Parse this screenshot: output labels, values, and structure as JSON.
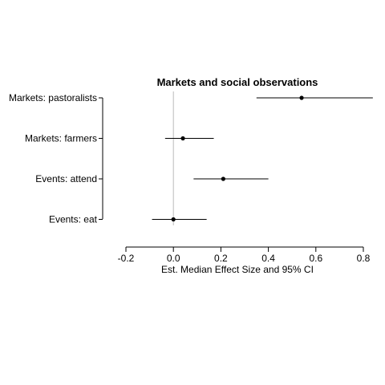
{
  "chart_data": {
    "type": "scatter",
    "title": "Markets and social observations",
    "xlabel": "Est. Median Effect Size and 95% CI",
    "ylabel": "",
    "xlim": [
      -0.2,
      0.8
    ],
    "xticks": [
      -0.2,
      0.0,
      0.2,
      0.4,
      0.6,
      0.8
    ],
    "xtick_labels": [
      "-0.2",
      "0.0",
      "0.2",
      "0.4",
      "0.6",
      "0.8"
    ],
    "reference_line": 0,
    "grid": false,
    "legend": "none",
    "colors": {
      "points": "#000000",
      "reference_line": "#bbbbbb"
    },
    "categories": [
      "Markets: pastoralists",
      "Markets: farmers",
      "Events: attend",
      "Events: eat"
    ],
    "estimates": [
      0.54,
      0.04,
      0.21,
      0.0
    ],
    "ci_lower": [
      0.35,
      -0.035,
      0.085,
      -0.09
    ],
    "ci_upper": [
      0.84,
      0.17,
      0.4,
      0.14
    ]
  }
}
